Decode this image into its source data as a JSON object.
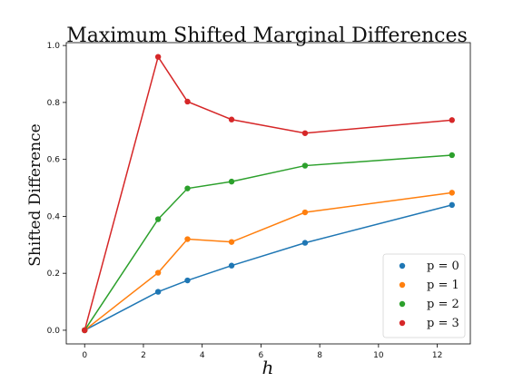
{
  "chart_data": {
    "type": "line",
    "title": "Maximum Shifted Marginal Differences",
    "xlabel": "h",
    "ylabel": "Shifted Difference",
    "x": [
      0,
      2.5,
      3.5,
      5,
      7.5,
      12.5
    ],
    "xlim": [
      -0.625,
      13.125
    ],
    "ylim": [
      -0.048,
      1.01
    ],
    "x_ticks": [
      0,
      2,
      4,
      6,
      8,
      10,
      12
    ],
    "y_ticks": [
      0.0,
      0.2,
      0.4,
      0.6,
      0.8,
      1.0
    ],
    "grid": false,
    "legend_position": "lower-right",
    "series": [
      {
        "name": "p = 0",
        "color": "#1f77b4",
        "values": [
          0.0,
          0.135,
          0.175,
          0.227,
          0.307,
          0.44
        ]
      },
      {
        "name": "p = 1",
        "color": "#ff7f0e",
        "values": [
          0.0,
          0.202,
          0.32,
          0.31,
          0.414,
          0.483
        ]
      },
      {
        "name": "p = 2",
        "color": "#2ca02c",
        "values": [
          0.0,
          0.39,
          0.498,
          0.522,
          0.578,
          0.615
        ]
      },
      {
        "name": "p = 3",
        "color": "#d62728",
        "values": [
          0.0,
          0.96,
          0.803,
          0.74,
          0.692,
          0.738
        ]
      }
    ]
  }
}
